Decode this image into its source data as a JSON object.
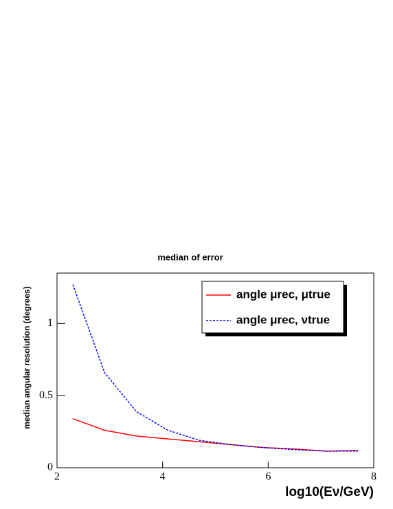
{
  "chart_data": {
    "type": "line",
    "title": "median of error",
    "x_label": "log10(Eν/GeV)",
    "y_label": "median angular resolution (degrees)",
    "x": [
      2.3,
      2.9,
      3.5,
      4.1,
      4.7,
      5.3,
      5.9,
      6.5,
      7.1,
      7.7
    ],
    "series": [
      {
        "name": "angle μrec, μtrue",
        "color": "#ff0000",
        "dash": false,
        "values": [
          0.34,
          0.26,
          0.22,
          0.2,
          0.18,
          0.16,
          0.14,
          0.13,
          0.115,
          0.12
        ]
      },
      {
        "name": "angle μrec, νtrue",
        "color": "#0000ff",
        "dash": true,
        "values": [
          1.27,
          0.66,
          0.39,
          0.26,
          0.19,
          0.16,
          0.14,
          0.125,
          0.115,
          0.115
        ]
      }
    ],
    "xlim": [
      2,
      8
    ],
    "xticks": [
      2,
      4,
      6,
      8
    ],
    "ylim": [
      0,
      1.35
    ],
    "yticks": [
      0,
      0.5,
      1
    ],
    "legend": "top-right"
  }
}
